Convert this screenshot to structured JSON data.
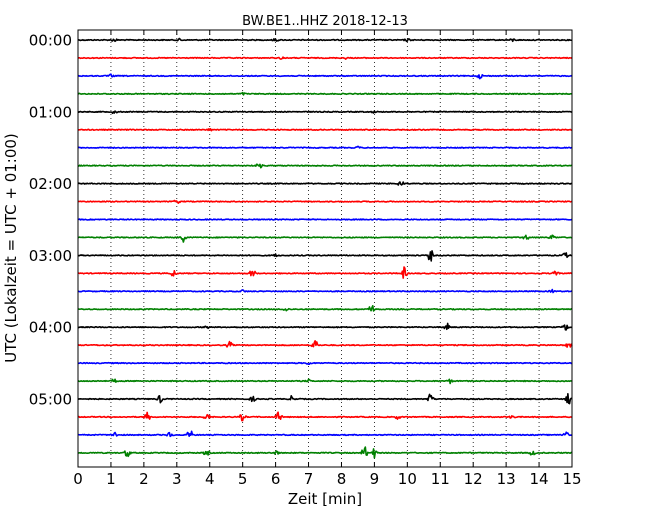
{
  "chart_data": {
    "type": "line",
    "title": "BW.BE1..HHZ 2018-12-13",
    "xlabel": "Zeit  [min]",
    "ylabel": "UTC (Lokalzeit = UTC + 01:00)",
    "xlim": [
      0,
      15
    ],
    "x_ticks": [
      "0",
      "1",
      "2",
      "3",
      "4",
      "5",
      "6",
      "7",
      "8",
      "9",
      "10",
      "11",
      "12",
      "13",
      "14",
      "15"
    ],
    "y_ticks": [
      "00:00",
      "01:00",
      "02:00",
      "03:00",
      "04:00",
      "05:00"
    ],
    "grid": "vertical dotted lines at each minute",
    "trace_colors": [
      "#000000",
      "#ff0000",
      "#0000ff",
      "#008000"
    ],
    "traces": [
      {
        "start": "00:00",
        "events": [
          {
            "t": 1.1,
            "a": 0.25
          },
          {
            "t": 3.1,
            "a": 0.2
          },
          {
            "t": 6.0,
            "a": 0.2
          },
          {
            "t": 10.0,
            "a": 0.2
          },
          {
            "t": 13.2,
            "a": 0.2
          }
        ]
      },
      {
        "start": "00:15",
        "events": [
          {
            "t": 6.2,
            "a": 0.2
          },
          {
            "t": 8.1,
            "a": 0.15
          }
        ]
      },
      {
        "start": "00:30",
        "events": [
          {
            "t": 1.0,
            "a": 0.2
          },
          {
            "t": 12.2,
            "a": 0.35
          }
        ]
      },
      {
        "start": "00:45",
        "events": [
          {
            "t": 5.0,
            "a": 0.15
          }
        ]
      },
      {
        "start": "01:00",
        "events": [
          {
            "t": 1.1,
            "a": 0.25
          },
          {
            "t": 9.0,
            "a": 0.15
          }
        ]
      },
      {
        "start": "01:15",
        "events": [
          {
            "t": 4.0,
            "a": 0.15
          }
        ]
      },
      {
        "start": "01:30",
        "events": [
          {
            "t": 8.5,
            "a": 0.15
          }
        ]
      },
      {
        "start": "01:45",
        "events": [
          {
            "t": 5.5,
            "a": 0.4
          }
        ]
      },
      {
        "start": "02:00",
        "events": [
          {
            "t": 9.8,
            "a": 0.5
          }
        ]
      },
      {
        "start": "02:15",
        "events": [
          {
            "t": 3.0,
            "a": 0.3
          }
        ]
      },
      {
        "start": "02:30",
        "events": []
      },
      {
        "start": "02:45",
        "events": [
          {
            "t": 3.2,
            "a": 0.6
          },
          {
            "t": 13.6,
            "a": 0.4
          },
          {
            "t": 14.4,
            "a": 0.4
          }
        ]
      },
      {
        "start": "03:00",
        "events": [
          {
            "t": 10.7,
            "a": 1.0
          },
          {
            "t": 14.8,
            "a": 0.4
          },
          {
            "t": 6.0,
            "a": 0.2
          }
        ]
      },
      {
        "start": "03:15",
        "events": [
          {
            "t": 2.9,
            "a": 0.5
          },
          {
            "t": 5.3,
            "a": 0.7
          },
          {
            "t": 9.9,
            "a": 0.9
          },
          {
            "t": 14.5,
            "a": 0.3
          }
        ]
      },
      {
        "start": "03:30",
        "events": [
          {
            "t": 5.0,
            "a": 0.2
          },
          {
            "t": 14.4,
            "a": 0.2
          }
        ]
      },
      {
        "start": "03:45",
        "events": [
          {
            "t": 8.9,
            "a": 0.9
          },
          {
            "t": 6.3,
            "a": 0.3
          }
        ]
      },
      {
        "start": "04:00",
        "events": [
          {
            "t": 11.2,
            "a": 0.6
          },
          {
            "t": 14.8,
            "a": 0.5
          },
          {
            "t": 3.9,
            "a": 0.2
          }
        ]
      },
      {
        "start": "04:15",
        "events": [
          {
            "t": 4.6,
            "a": 0.5
          },
          {
            "t": 7.2,
            "a": 1.0
          },
          {
            "t": 14.9,
            "a": 0.4
          }
        ]
      },
      {
        "start": "04:30",
        "events": [
          {
            "t": 7.0,
            "a": 0.2
          }
        ]
      },
      {
        "start": "04:45",
        "events": [
          {
            "t": 1.1,
            "a": 0.3
          },
          {
            "t": 7.0,
            "a": 0.2
          },
          {
            "t": 11.3,
            "a": 0.3
          }
        ]
      },
      {
        "start": "05:00",
        "events": [
          {
            "t": 2.5,
            "a": 0.6
          },
          {
            "t": 5.3,
            "a": 0.4
          },
          {
            "t": 6.5,
            "a": 0.5
          },
          {
            "t": 10.7,
            "a": 0.8
          },
          {
            "t": 14.9,
            "a": 0.9
          }
        ]
      },
      {
        "start": "05:15",
        "events": [
          {
            "t": 2.1,
            "a": 0.7
          },
          {
            "t": 3.9,
            "a": 0.7
          },
          {
            "t": 5.0,
            "a": 0.6
          },
          {
            "t": 6.1,
            "a": 0.8
          },
          {
            "t": 9.7,
            "a": 0.3
          },
          {
            "t": 13.2,
            "a": 0.3
          }
        ]
      },
      {
        "start": "05:30",
        "events": [
          {
            "t": 1.1,
            "a": 0.5
          },
          {
            "t": 2.8,
            "a": 0.5
          },
          {
            "t": 3.4,
            "a": 0.8
          },
          {
            "t": 14.8,
            "a": 1.0
          }
        ]
      },
      {
        "start": "05:45",
        "events": [
          {
            "t": 1.5,
            "a": 0.7
          },
          {
            "t": 3.9,
            "a": 0.4
          },
          {
            "t": 6.0,
            "a": 0.4
          },
          {
            "t": 8.7,
            "a": 1.0
          },
          {
            "t": 9.0,
            "a": 0.7
          },
          {
            "t": 13.8,
            "a": 0.4
          }
        ]
      }
    ]
  }
}
